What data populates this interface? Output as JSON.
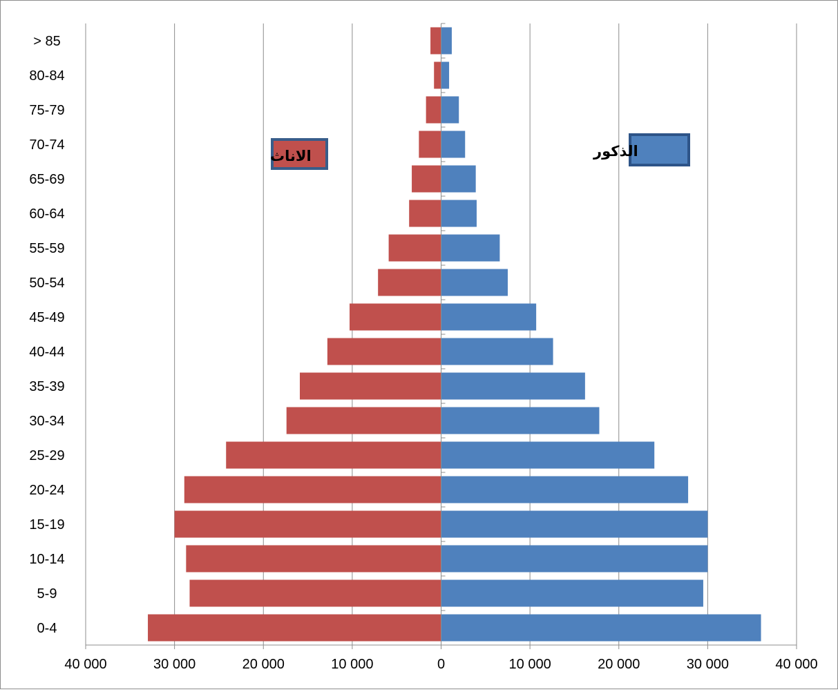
{
  "chart_data": {
    "type": "bar",
    "orientation": "horizontal",
    "subtype": "population-pyramid",
    "categories": [
      "0-4",
      "5-9",
      "10-14",
      "15-19",
      "20-24",
      "25-29",
      "30-34",
      "35-39",
      "40-44",
      "45-49",
      "50-54",
      "55-59",
      "60-64",
      "65-69",
      "70-74",
      "75-79",
      "80-84",
      "> 85"
    ],
    "series": [
      {
        "name": "الذكور",
        "color": "#4f81bd",
        "side": "right",
        "values": [
          36000,
          29500,
          30000,
          30000,
          27800,
          24000,
          17800,
          16200,
          12600,
          10700,
          7500,
          6600,
          4000,
          3900,
          2700,
          2000,
          900,
          1200
        ]
      },
      {
        "name": "الاناث",
        "color": "#c0504d",
        "side": "left",
        "values": [
          33000,
          28300,
          28700,
          30000,
          28900,
          24200,
          17400,
          15900,
          12800,
          10300,
          7100,
          5900,
          3600,
          3300,
          2500,
          1700,
          800,
          1200
        ]
      }
    ],
    "x_axis": {
      "range": [
        -40000,
        40000
      ],
      "tick_values": [
        -40000,
        -30000,
        -20000,
        -10000,
        0,
        10000,
        20000,
        30000,
        40000
      ],
      "tick_labels": [
        "40 000",
        "30 000",
        "20 000",
        "10 000",
        "0",
        "10 000",
        "20 000",
        "30 000",
        "40 000"
      ]
    },
    "grid": "vertical major gridlines",
    "legend_placement": "inside-top"
  }
}
